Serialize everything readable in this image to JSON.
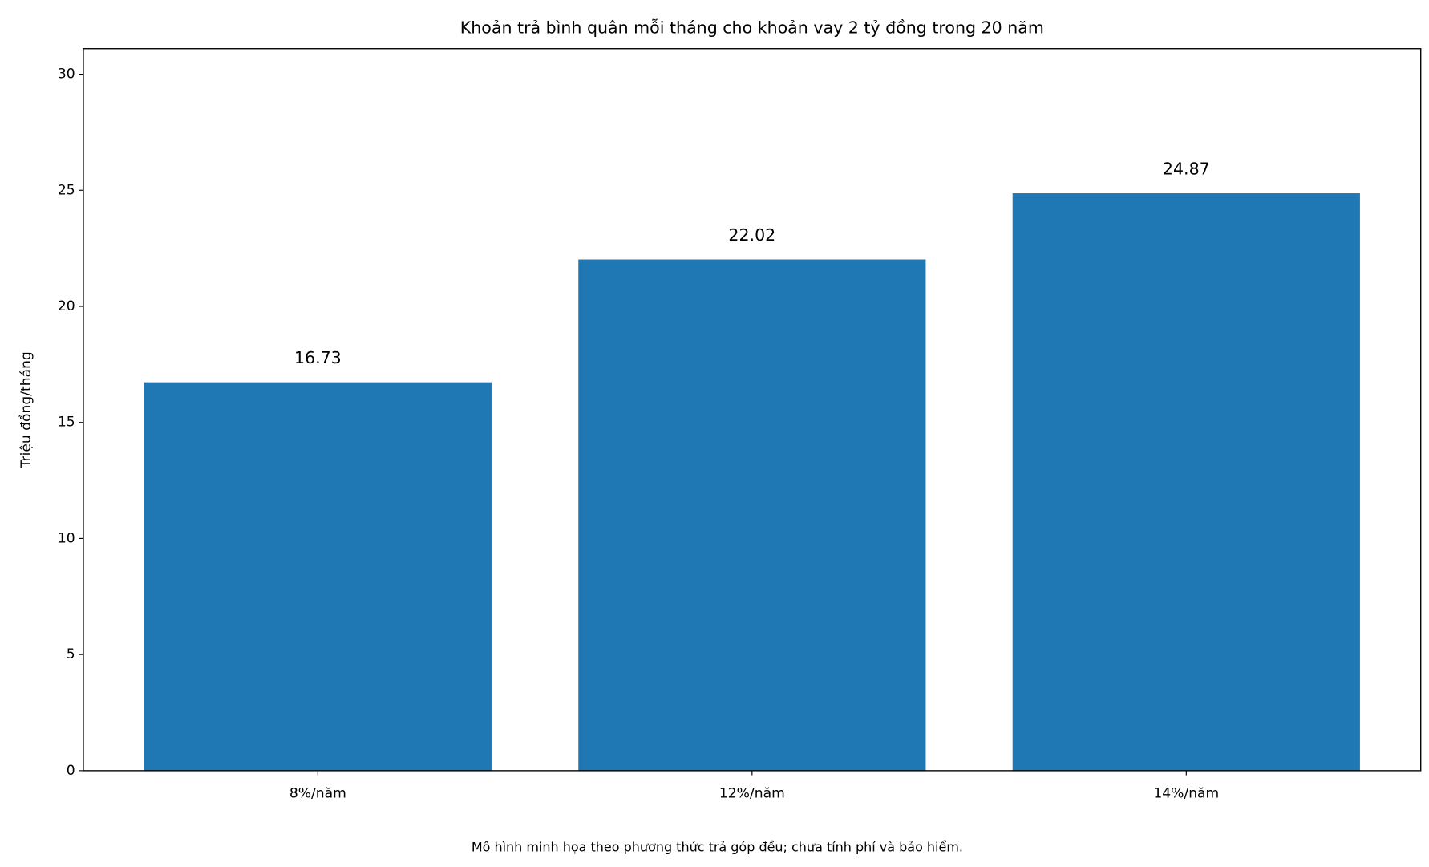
{
  "chart_data": {
    "type": "bar",
    "title": "Khoản trả bình quân mỗi tháng cho khoản vay 2 tỷ đồng trong 20 năm",
    "y_label": "Triệu đồng/tháng",
    "footnote": "Mô hình minh họa theo phương thức trả góp đều; chưa tính phí và bảo hiểm.",
    "categories": [
      "8%/năm",
      "12%/năm",
      "14%/năm"
    ],
    "values": [
      16.73,
      22.02,
      24.87
    ],
    "color": "#1f77b4",
    "ylim": [
      0,
      31.1
    ],
    "yticks": [
      0,
      5,
      10,
      15,
      20,
      25,
      30
    ],
    "grid": false
  }
}
